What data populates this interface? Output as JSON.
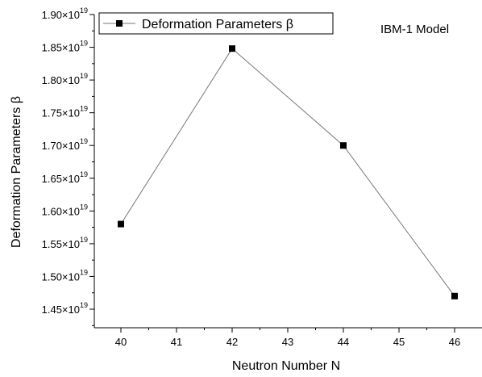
{
  "chart_data": {
    "type": "line",
    "title": "",
    "annotation": "IBM-1 Model",
    "xlabel": "Neutron Number N",
    "ylabel": "Deformation Parameters β",
    "x": [
      40,
      42,
      44,
      46
    ],
    "series": [
      {
        "name": "Deformation Parameters β",
        "values": [
          1.58e+19,
          1.848e+19,
          1.7e+19,
          1.47e+19
        ]
      }
    ],
    "xlim": [
      39.5,
      46.5
    ],
    "ylim": [
      1.425e+19,
      1.9e+19
    ],
    "x_ticks": [
      "40",
      "41",
      "42",
      "43",
      "44",
      "45",
      "46"
    ],
    "y_ticks": [
      {
        "mantissa": "1.45×10",
        "exponent": "19",
        "value": 1.45e+19
      },
      {
        "mantissa": "1.50×10",
        "exponent": "19",
        "value": 1.5e+19
      },
      {
        "mantissa": "1.55×10",
        "exponent": "19",
        "value": 1.55e+19
      },
      {
        "mantissa": "1.60×10",
        "exponent": "19",
        "value": 1.6e+19
      },
      {
        "mantissa": "1.65×10",
        "exponent": "19",
        "value": 1.65e+19
      },
      {
        "mantissa": "1.70×10",
        "exponent": "19",
        "value": 1.7e+19
      },
      {
        "mantissa": "1.75×10",
        "exponent": "19",
        "value": 1.75e+19
      },
      {
        "mantissa": "1.80×10",
        "exponent": "19",
        "value": 1.8e+19
      },
      {
        "mantissa": "1.85×10",
        "exponent": "19",
        "value": 1.85e+19
      },
      {
        "mantissa": "1.90×10",
        "exponent": "19",
        "value": 1.9e+19
      }
    ],
    "grid": false,
    "legend_position": "top-left",
    "marker": "square",
    "line_color": "#777777",
    "marker_color": "#000000"
  }
}
